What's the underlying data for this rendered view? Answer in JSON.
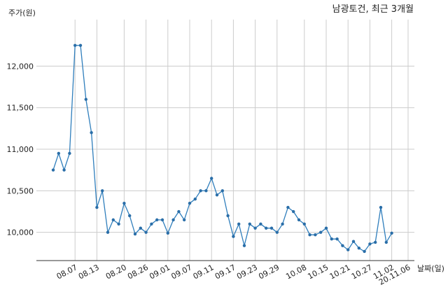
{
  "chart_data": {
    "type": "line",
    "title": "남광토건, 최근 3개월",
    "ylabel": "주가(원)",
    "xlabel": "날짜(일)",
    "ylim": [
      9660,
      12560
    ],
    "yticks": [
      10000,
      10500,
      11000,
      11500,
      12000
    ],
    "ytick_labels": [
      "10,000",
      "10,500",
      "11,000",
      "11,500",
      "12,000"
    ],
    "grid": true,
    "legend": "none",
    "colors": {
      "line": "#2f7ebc",
      "marker": "#2a6ea8",
      "grid": "#cccccc",
      "axis": "#333333"
    },
    "xtick_labels": [
      "08.07",
      "08.13",
      "08.20",
      "08.26",
      "09.01",
      "09.07",
      "09.11",
      "09.17",
      "09.23",
      "09.29",
      "10.08",
      "10.15",
      "10.21",
      "10.27",
      "11.02",
      "20.11.06"
    ],
    "xtick_positions": [
      4,
      8,
      13,
      17,
      21,
      25,
      29,
      33,
      37,
      41,
      46,
      50,
      54,
      58,
      62,
      65
    ],
    "series": [
      {
        "values": [
          10750,
          10950,
          10750,
          10950,
          12250,
          12250,
          11600,
          11200,
          10300,
          10500,
          10000,
          10150,
          10100,
          10350,
          10200,
          9980,
          10050,
          10000,
          10100,
          10150,
          10150,
          9990,
          10150,
          10250,
          10150,
          10350,
          10400,
          10500,
          10500,
          10650,
          10450,
          10500,
          10200,
          9950,
          10100,
          9840,
          10100,
          10050,
          10100,
          10050,
          10050,
          10000,
          10100,
          10300,
          10250,
          10150,
          10100,
          9970,
          9970,
          10000,
          10050,
          9920,
          9920,
          9840,
          9790,
          9890,
          9810,
          9770,
          9860,
          9880,
          10300,
          9880,
          9990
        ]
      }
    ]
  }
}
